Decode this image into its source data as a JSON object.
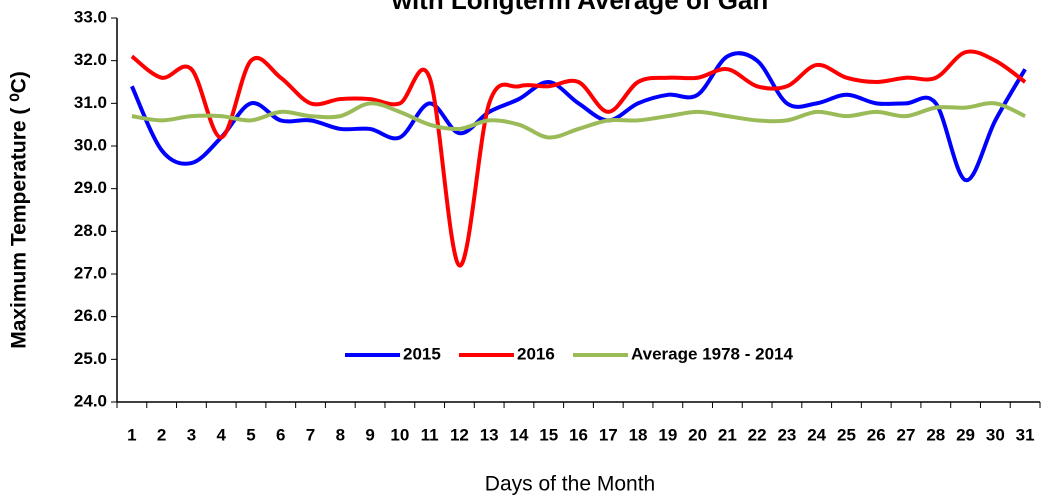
{
  "chart_data": {
    "type": "line",
    "title": "with Longterm Average of Gan",
    "x_label": "Days of the Month",
    "y_label": "Maximum Temperature ( ⁰C)",
    "categories": [
      "1",
      "2",
      "3",
      "4",
      "5",
      "6",
      "7",
      "8",
      "9",
      "10",
      "11",
      "12",
      "13",
      "14",
      "15",
      "16",
      "17",
      "18",
      "19",
      "20",
      "21",
      "22",
      "23",
      "24",
      "25",
      "26",
      "27",
      "28",
      "29",
      "30",
      "31"
    ],
    "series": [
      {
        "name": "2015",
        "color": "#0000ff",
        "values": [
          31.4,
          29.9,
          29.6,
          30.2,
          31.0,
          30.6,
          30.6,
          30.4,
          30.4,
          30.2,
          31.0,
          30.3,
          30.8,
          31.1,
          31.5,
          31.0,
          30.6,
          31.0,
          31.2,
          31.2,
          32.1,
          32.0,
          31.0,
          31.0,
          31.2,
          31.0,
          31.0,
          31.0,
          29.2,
          30.6,
          31.8
        ]
      },
      {
        "name": "2016",
        "color": "#ff0000",
        "values": [
          32.1,
          31.6,
          31.8,
          30.2,
          32.0,
          31.6,
          31.0,
          31.1,
          31.1,
          31.0,
          31.6,
          27.2,
          31.0,
          31.4,
          31.4,
          31.5,
          30.8,
          31.5,
          31.6,
          31.6,
          31.8,
          31.4,
          31.4,
          31.9,
          31.6,
          31.5,
          31.6,
          31.6,
          32.2,
          32.0,
          31.5
        ]
      },
      {
        "name": "Average 1978 - 2014",
        "color": "#9bbb59",
        "values": [
          30.7,
          30.6,
          30.7,
          30.7,
          30.6,
          30.8,
          30.7,
          30.7,
          31.0,
          30.8,
          30.5,
          30.4,
          30.6,
          30.5,
          30.2,
          30.4,
          30.6,
          30.6,
          30.7,
          30.8,
          30.7,
          30.6,
          30.6,
          30.8,
          30.7,
          30.8,
          30.7,
          30.9,
          30.9,
          31.0,
          30.7
        ]
      }
    ],
    "ylim": [
      24,
      33
    ],
    "yticks": [
      {
        "value": 24,
        "label": "24.0"
      },
      {
        "value": 25,
        "label": "25.0"
      },
      {
        "value": 26,
        "label": "26.0"
      },
      {
        "value": 27,
        "label": "27.0"
      },
      {
        "value": 28,
        "label": "28.0"
      },
      {
        "value": 29,
        "label": "29.0"
      },
      {
        "value": 30,
        "label": "30.0"
      },
      {
        "value": 31,
        "label": "31.0"
      },
      {
        "value": 32,
        "label": "32.0"
      },
      {
        "value": 33,
        "label": "33.0"
      }
    ],
    "grid": false,
    "legend": "lower center"
  }
}
